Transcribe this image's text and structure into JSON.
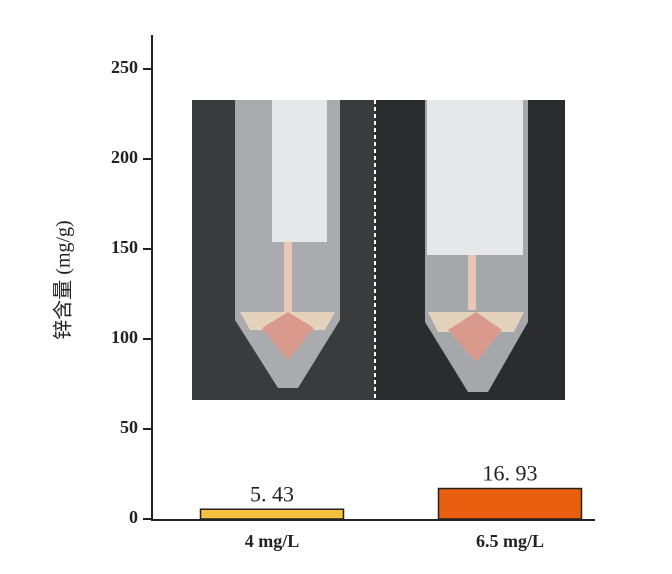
{
  "chart_data": {
    "type": "bar",
    "ylabel": "锌含量 (mg/g)",
    "categories": [
      "4 mg/L",
      "6.5 mg/L"
    ],
    "values": [
      5.43,
      16.93
    ],
    "value_labels": [
      "5. 43",
      "16. 93"
    ],
    "colors": [
      "#f3c03f",
      "#e8600f"
    ],
    "ylim": [
      0,
      270
    ],
    "yticks": [
      0,
      50,
      100,
      150,
      200,
      250
    ],
    "grid": false
  }
}
